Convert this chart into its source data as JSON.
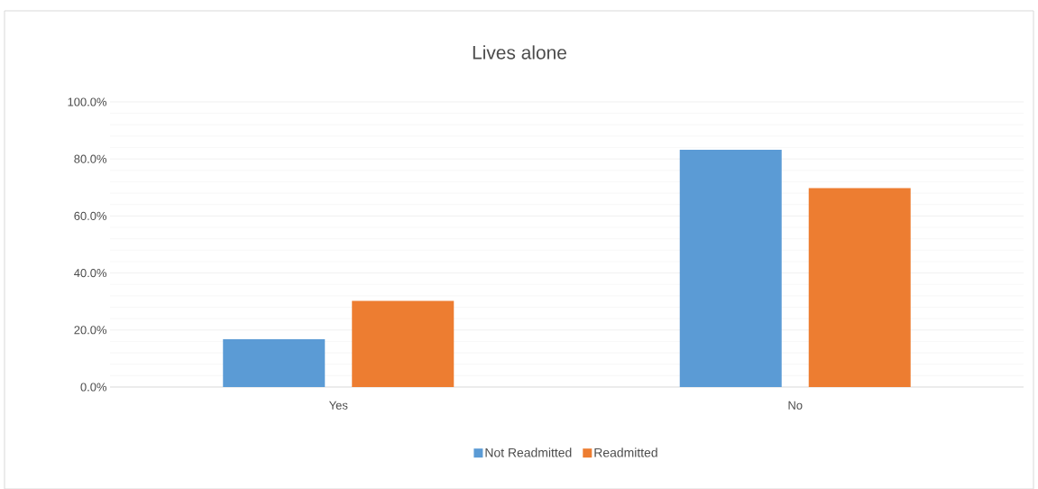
{
  "chart_data": {
    "type": "bar",
    "title": "Lives alone",
    "categories": [
      "Yes",
      "No"
    ],
    "series": [
      {
        "name": "Not Readmitted",
        "color": "#5b9bd5",
        "values": [
          16.8,
          83.2
        ]
      },
      {
        "name": "Readmitted",
        "color": "#ed7d31",
        "values": [
          30.2,
          69.8
        ]
      }
    ],
    "ylim": [
      0,
      100
    ],
    "yticks": [
      {
        "value": 0,
        "label": "0.0%"
      },
      {
        "value": 20,
        "label": "20.0%"
      },
      {
        "value": 40,
        "label": "40.0%"
      },
      {
        "value": 60,
        "label": "60.0%"
      },
      {
        "value": 80,
        "label": "80.0%"
      },
      {
        "value": 100,
        "label": "100.0%"
      }
    ],
    "grid": "y",
    "legend": "bottom"
  }
}
